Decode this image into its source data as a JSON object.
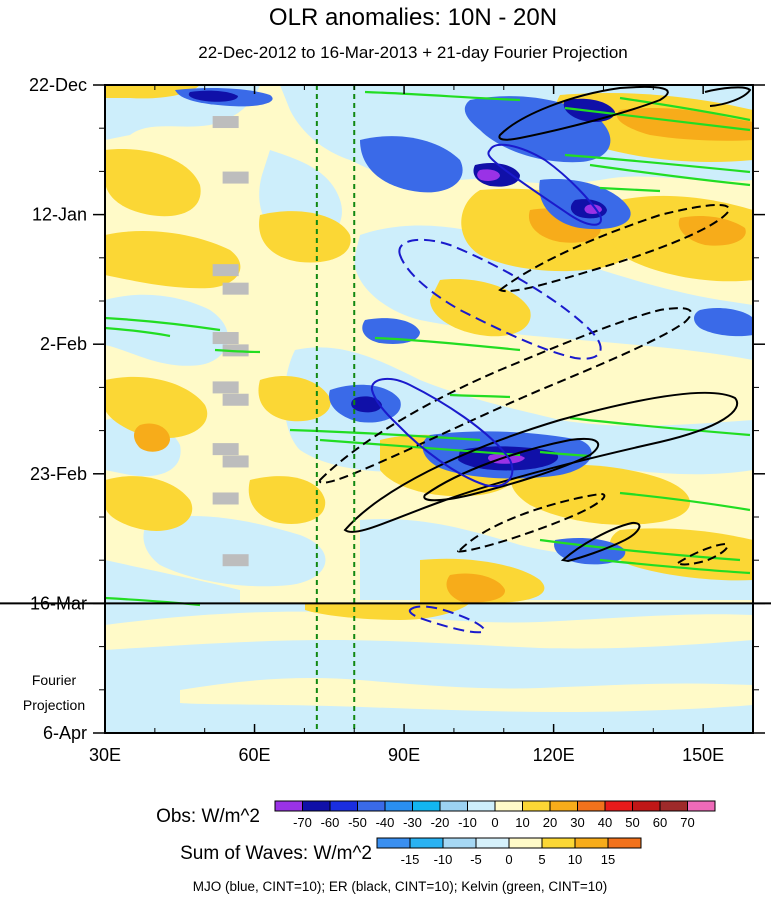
{
  "chart_data": {
    "type": "heatmap",
    "title": "OLR anomalies: 10N - 20N",
    "subtitle": "22-Dec-2012 to 16-Mar-2013 + 21-day Fourier Projection",
    "x_axis": {
      "range": [
        30,
        160
      ],
      "ticks": [
        30,
        60,
        90,
        120,
        150
      ],
      "tick_labels": [
        "30E",
        "60E",
        "90E",
        "120E",
        "150E"
      ]
    },
    "y_axis": {
      "range_days": [
        0,
        105
      ],
      "ticks_days": [
        0,
        21,
        42,
        63,
        84,
        105
      ],
      "tick_labels": [
        "22-Dec",
        "12-Jan",
        "2-Feb",
        "23-Feb",
        "16-Mar",
        "6-Apr"
      ],
      "projection_label": [
        "Fourier",
        "Projection"
      ]
    },
    "observation_end_day": 84,
    "reference_longitudes": [
      72.5,
      80
    ],
    "obs_colorbar": {
      "title": "Obs: W/m^2",
      "levels": [
        "-70",
        "-60",
        "-50",
        "-40",
        "-30",
        "-20",
        "-10",
        "0",
        "10",
        "20",
        "30",
        "40",
        "50",
        "60",
        "70"
      ],
      "colors": [
        "#9a32e6",
        "#1010a8",
        "#1a2ee0",
        "#3a6ae8",
        "#2a8ff0",
        "#12b6f0",
        "#9cd2f2",
        "#cdeefb",
        "#fffac8",
        "#fbd735",
        "#f7ac1a",
        "#f2721c",
        "#e81b1b",
        "#c01717",
        "#9e2a2a",
        "#ee6ab8"
      ]
    },
    "waves_colorbar": {
      "title": "Sum of Waves: W/m^2",
      "levels": [
        "-15",
        "-10",
        "-5",
        "0",
        "5",
        "10",
        "15"
      ],
      "colors": [
        "#3a8ff0",
        "#2ab2f2",
        "#a6d8f4",
        "#d6f1fb",
        "#fffac8",
        "#fbd735",
        "#f7ac1a",
        "#f2721c"
      ]
    },
    "legend_note": "MJO (blue, CINT=10); ER (black, CINT=10); Kelvin (green, CINT=10)",
    "wave_series": [
      {
        "name": "MJO",
        "color": "#1a1acc"
      },
      {
        "name": "ER",
        "color": "#000000"
      },
      {
        "name": "Kelvin",
        "color": "#22dd22"
      }
    ],
    "missing_data_blocks": [
      {
        "lon": 53,
        "day": 6
      },
      {
        "lon": 55,
        "day": 15
      },
      {
        "lon": 53,
        "day": 30
      },
      {
        "lon": 55,
        "day": 33
      },
      {
        "lon": 53,
        "day": 41
      },
      {
        "lon": 55,
        "day": 43
      },
      {
        "lon": 53,
        "day": 49
      },
      {
        "lon": 55,
        "day": 51
      },
      {
        "lon": 53,
        "day": 59
      },
      {
        "lon": 55,
        "day": 61
      },
      {
        "lon": 53,
        "day": 67
      },
      {
        "lon": 55,
        "day": 77
      }
    ]
  }
}
